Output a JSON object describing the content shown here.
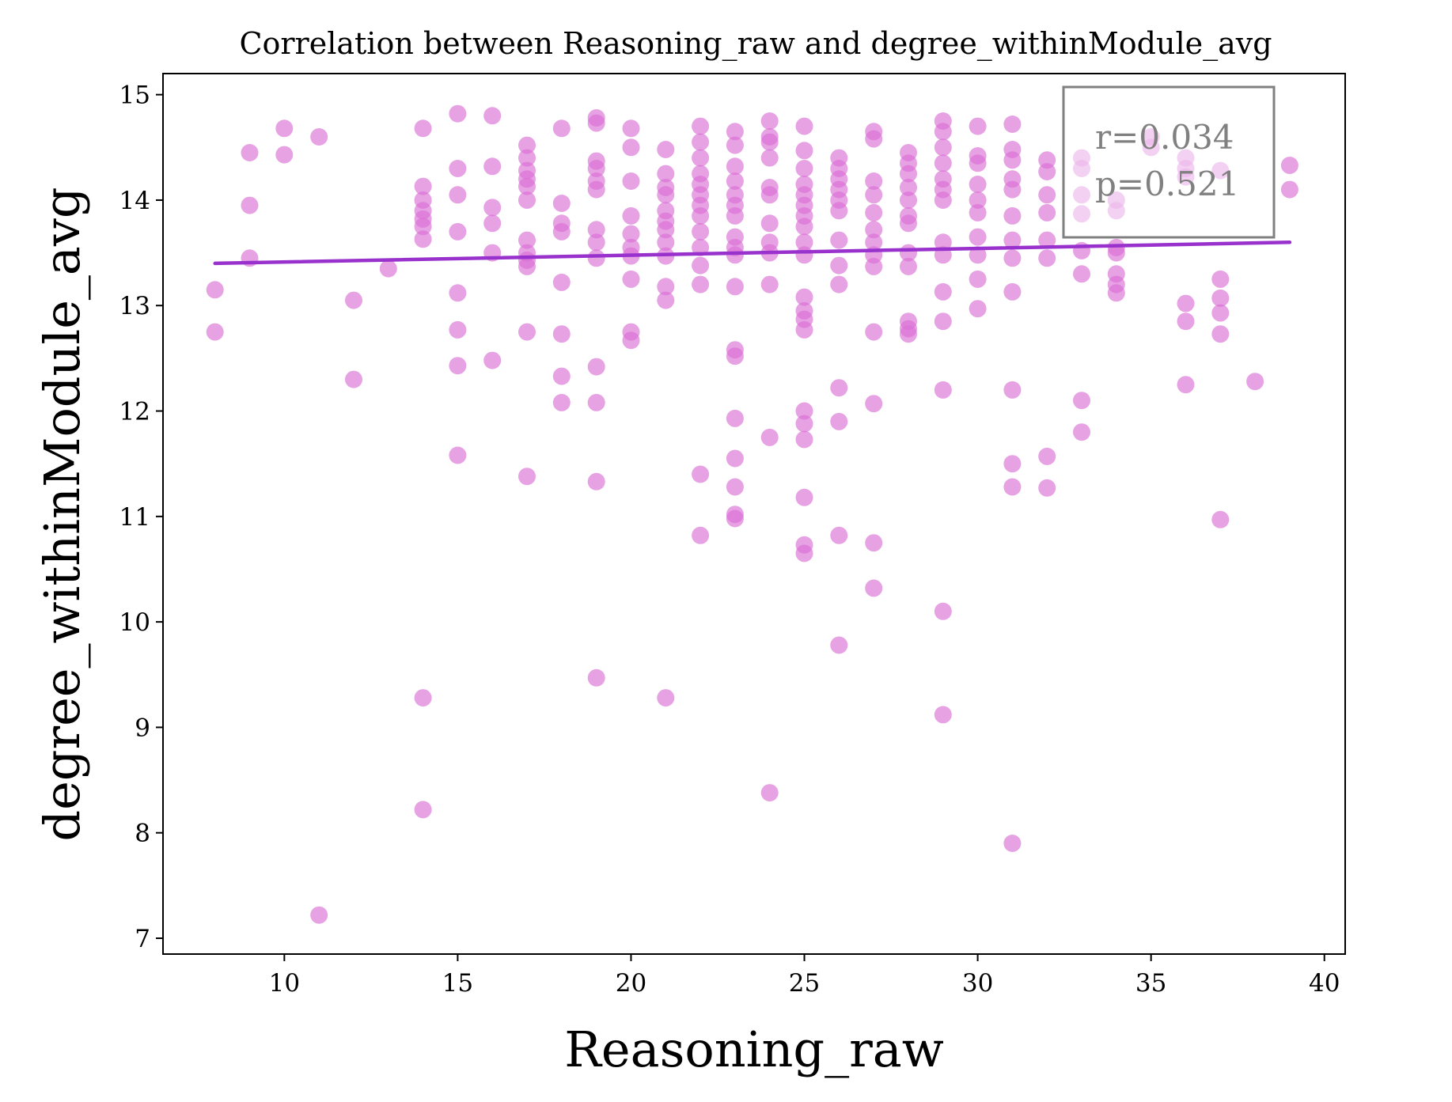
{
  "chart_data": {
    "type": "scatter",
    "title": "Correlation between Reasoning_raw and degree_withinModule_avg",
    "xlabel": "Reasoning_raw",
    "ylabel": "degree_withinModule_avg",
    "xlim": [
      6.5,
      40.6
    ],
    "ylim": [
      6.85,
      15.2
    ],
    "xticks": [
      10,
      15,
      20,
      25,
      30,
      35,
      40
    ],
    "yticks": [
      7,
      8,
      9,
      10,
      11,
      12,
      13,
      14,
      15
    ],
    "grid": false,
    "point_color": "#DA70D6",
    "line_color": "#9932CC",
    "stats": {
      "r_text": "r=0.034",
      "p_text": "p=0.521",
      "placement": "top-right"
    },
    "regression": {
      "x": [
        8,
        39
      ],
      "y": [
        13.4,
        13.6
      ]
    },
    "points": [
      [
        8,
        13.15
      ],
      [
        8,
        12.75
      ],
      [
        9,
        14.45
      ],
      [
        9,
        13.95
      ],
      [
        9,
        13.45
      ],
      [
        10,
        14.68
      ],
      [
        10,
        14.43
      ],
      [
        11,
        14.6
      ],
      [
        11,
        7.22
      ],
      [
        12,
        13.05
      ],
      [
        12,
        12.3
      ],
      [
        13,
        13.35
      ],
      [
        14,
        14.68
      ],
      [
        14,
        14.13
      ],
      [
        14,
        14.0
      ],
      [
        14,
        13.9
      ],
      [
        14,
        13.82
      ],
      [
        14,
        13.75
      ],
      [
        14,
        13.63
      ],
      [
        14,
        9.28
      ],
      [
        14,
        8.22
      ],
      [
        15,
        14.82
      ],
      [
        15,
        14.3
      ],
      [
        15,
        14.05
      ],
      [
        15,
        13.7
      ],
      [
        15,
        13.12
      ],
      [
        15,
        12.77
      ],
      [
        15,
        12.43
      ],
      [
        15,
        11.58
      ],
      [
        16,
        14.8
      ],
      [
        16,
        14.32
      ],
      [
        16,
        13.93
      ],
      [
        16,
        13.78
      ],
      [
        16,
        13.5
      ],
      [
        16,
        12.48
      ],
      [
        17,
        14.52
      ],
      [
        17,
        14.4
      ],
      [
        17,
        14.28
      ],
      [
        17,
        14.2
      ],
      [
        17,
        14.13
      ],
      [
        17,
        14.0
      ],
      [
        17,
        13.62
      ],
      [
        17,
        13.5
      ],
      [
        17,
        13.43
      ],
      [
        17,
        13.37
      ],
      [
        17,
        12.75
      ],
      [
        17,
        11.38
      ],
      [
        18,
        14.68
      ],
      [
        18,
        13.97
      ],
      [
        18,
        13.78
      ],
      [
        18,
        13.7
      ],
      [
        18,
        13.22
      ],
      [
        18,
        12.73
      ],
      [
        18,
        12.33
      ],
      [
        18,
        12.08
      ],
      [
        19,
        14.78
      ],
      [
        19,
        14.73
      ],
      [
        19,
        14.37
      ],
      [
        19,
        14.3
      ],
      [
        19,
        14.18
      ],
      [
        19,
        14.1
      ],
      [
        19,
        13.72
      ],
      [
        19,
        13.6
      ],
      [
        19,
        13.45
      ],
      [
        19,
        12.42
      ],
      [
        19,
        12.08
      ],
      [
        19,
        11.33
      ],
      [
        19,
        9.47
      ],
      [
        20,
        14.68
      ],
      [
        20,
        14.5
      ],
      [
        20,
        14.18
      ],
      [
        20,
        13.85
      ],
      [
        20,
        13.68
      ],
      [
        20,
        13.55
      ],
      [
        20,
        13.47
      ],
      [
        20,
        13.25
      ],
      [
        20,
        12.75
      ],
      [
        20,
        12.67
      ],
      [
        21,
        14.48
      ],
      [
        21,
        14.25
      ],
      [
        21,
        14.12
      ],
      [
        21,
        14.05
      ],
      [
        21,
        13.9
      ],
      [
        21,
        13.8
      ],
      [
        21,
        13.72
      ],
      [
        21,
        13.6
      ],
      [
        21,
        13.47
      ],
      [
        21,
        13.18
      ],
      [
        21,
        13.05
      ],
      [
        21,
        9.28
      ],
      [
        22,
        14.7
      ],
      [
        22,
        14.55
      ],
      [
        22,
        14.4
      ],
      [
        22,
        14.25
      ],
      [
        22,
        14.15
      ],
      [
        22,
        14.05
      ],
      [
        22,
        13.95
      ],
      [
        22,
        13.85
      ],
      [
        22,
        13.7
      ],
      [
        22,
        13.55
      ],
      [
        22,
        13.38
      ],
      [
        22,
        13.2
      ],
      [
        22,
        11.4
      ],
      [
        22,
        10.82
      ],
      [
        23,
        14.65
      ],
      [
        23,
        14.52
      ],
      [
        23,
        14.32
      ],
      [
        23,
        14.18
      ],
      [
        23,
        14.05
      ],
      [
        23,
        13.95
      ],
      [
        23,
        13.85
      ],
      [
        23,
        13.65
      ],
      [
        23,
        13.55
      ],
      [
        23,
        13.48
      ],
      [
        23,
        13.18
      ],
      [
        23,
        12.58
      ],
      [
        23,
        12.52
      ],
      [
        23,
        11.93
      ],
      [
        23,
        11.55
      ],
      [
        23,
        11.28
      ],
      [
        23,
        11.02
      ],
      [
        23,
        10.98
      ],
      [
        24,
        14.75
      ],
      [
        24,
        14.6
      ],
      [
        24,
        14.55
      ],
      [
        24,
        14.4
      ],
      [
        24,
        14.12
      ],
      [
        24,
        14.05
      ],
      [
        24,
        13.78
      ],
      [
        24,
        13.6
      ],
      [
        24,
        13.5
      ],
      [
        24,
        13.2
      ],
      [
        24,
        11.75
      ],
      [
        24,
        8.38
      ],
      [
        25,
        14.7
      ],
      [
        25,
        14.47
      ],
      [
        25,
        14.3
      ],
      [
        25,
        14.15
      ],
      [
        25,
        14.05
      ],
      [
        25,
        13.95
      ],
      [
        25,
        13.85
      ],
      [
        25,
        13.75
      ],
      [
        25,
        13.6
      ],
      [
        25,
        13.48
      ],
      [
        25,
        13.08
      ],
      [
        25,
        12.95
      ],
      [
        25,
        12.87
      ],
      [
        25,
        12.77
      ],
      [
        25,
        12.0
      ],
      [
        25,
        11.88
      ],
      [
        25,
        11.73
      ],
      [
        25,
        11.18
      ],
      [
        25,
        10.73
      ],
      [
        25,
        10.65
      ],
      [
        26,
        14.4
      ],
      [
        26,
        14.3
      ],
      [
        26,
        14.2
      ],
      [
        26,
        14.1
      ],
      [
        26,
        14.0
      ],
      [
        26,
        13.9
      ],
      [
        26,
        13.62
      ],
      [
        26,
        13.38
      ],
      [
        26,
        13.2
      ],
      [
        26,
        12.22
      ],
      [
        26,
        11.9
      ],
      [
        26,
        10.82
      ],
      [
        26,
        9.78
      ],
      [
        27,
        14.65
      ],
      [
        27,
        14.58
      ],
      [
        27,
        14.18
      ],
      [
        27,
        14.05
      ],
      [
        27,
        13.88
      ],
      [
        27,
        13.72
      ],
      [
        27,
        13.6
      ],
      [
        27,
        13.48
      ],
      [
        27,
        13.37
      ],
      [
        27,
        12.75
      ],
      [
        27,
        12.07
      ],
      [
        27,
        10.75
      ],
      [
        27,
        10.32
      ],
      [
        28,
        14.45
      ],
      [
        28,
        14.35
      ],
      [
        28,
        14.25
      ],
      [
        28,
        14.12
      ],
      [
        28,
        14.0
      ],
      [
        28,
        13.85
      ],
      [
        28,
        13.78
      ],
      [
        28,
        13.5
      ],
      [
        28,
        13.37
      ],
      [
        28,
        12.85
      ],
      [
        28,
        12.78
      ],
      [
        28,
        12.73
      ],
      [
        29,
        14.75
      ],
      [
        29,
        14.65
      ],
      [
        29,
        14.5
      ],
      [
        29,
        14.35
      ],
      [
        29,
        14.2
      ],
      [
        29,
        14.1
      ],
      [
        29,
        14.0
      ],
      [
        29,
        13.6
      ],
      [
        29,
        13.48
      ],
      [
        29,
        13.13
      ],
      [
        29,
        12.85
      ],
      [
        29,
        12.2
      ],
      [
        29,
        10.1
      ],
      [
        29,
        9.12
      ],
      [
        30,
        14.7
      ],
      [
        30,
        14.42
      ],
      [
        30,
        14.35
      ],
      [
        30,
        14.15
      ],
      [
        30,
        14.0
      ],
      [
        30,
        13.88
      ],
      [
        30,
        13.65
      ],
      [
        30,
        13.48
      ],
      [
        30,
        13.25
      ],
      [
        30,
        12.97
      ],
      [
        31,
        14.72
      ],
      [
        31,
        14.48
      ],
      [
        31,
        14.38
      ],
      [
        31,
        14.2
      ],
      [
        31,
        14.1
      ],
      [
        31,
        13.85
      ],
      [
        31,
        13.62
      ],
      [
        31,
        13.45
      ],
      [
        31,
        13.13
      ],
      [
        31,
        12.2
      ],
      [
        31,
        11.5
      ],
      [
        31,
        11.28
      ],
      [
        31,
        7.9
      ],
      [
        32,
        14.38
      ],
      [
        32,
        14.27
      ],
      [
        32,
        14.05
      ],
      [
        32,
        13.88
      ],
      [
        32,
        13.62
      ],
      [
        32,
        13.45
      ],
      [
        32,
        11.57
      ],
      [
        32,
        11.27
      ],
      [
        33,
        14.4
      ],
      [
        33,
        14.3
      ],
      [
        33,
        14.05
      ],
      [
        33,
        13.87
      ],
      [
        33,
        13.52
      ],
      [
        33,
        13.3
      ],
      [
        33,
        12.1
      ],
      [
        33,
        11.8
      ],
      [
        34,
        14.0
      ],
      [
        34,
        13.9
      ],
      [
        34,
        13.55
      ],
      [
        34,
        13.5
      ],
      [
        34,
        13.3
      ],
      [
        34,
        13.2
      ],
      [
        34,
        13.12
      ],
      [
        35,
        14.6
      ],
      [
        35,
        14.5
      ],
      [
        36,
        14.4
      ],
      [
        36,
        14.3
      ],
      [
        36,
        14.22
      ],
      [
        36,
        13.02
      ],
      [
        36,
        12.85
      ],
      [
        36,
        12.25
      ],
      [
        37,
        14.28
      ],
      [
        37,
        13.25
      ],
      [
        37,
        13.07
      ],
      [
        37,
        12.93
      ],
      [
        37,
        12.73
      ],
      [
        37,
        10.97
      ],
      [
        38,
        12.28
      ],
      [
        39,
        14.33
      ],
      [
        39,
        14.1
      ]
    ]
  }
}
